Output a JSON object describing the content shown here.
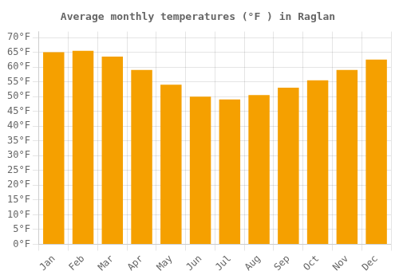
{
  "chart_data": {
    "type": "bar",
    "title": "Average monthly temperatures (°F ) in Raglan",
    "categories": [
      "Jan",
      "Feb",
      "Mar",
      "Apr",
      "May",
      "Jun",
      "Jul",
      "Aug",
      "Sep",
      "Oct",
      "Nov",
      "Dec"
    ],
    "values": [
      65,
      65.5,
      63.5,
      59,
      54,
      50,
      49,
      50.5,
      53,
      55.5,
      59,
      62.5
    ],
    "color": "#F5A000",
    "ylim": [
      0,
      72
    ],
    "yticks": [
      {
        "value": 0,
        "label": "0°F"
      },
      {
        "value": 5,
        "label": "5°F"
      },
      {
        "value": 10,
        "label": "10°F"
      },
      {
        "value": 15,
        "label": "15°F"
      },
      {
        "value": 20,
        "label": "20°F"
      },
      {
        "value": 25,
        "label": "25°F"
      },
      {
        "value": 30,
        "label": "30°F"
      },
      {
        "value": 35,
        "label": "35°F"
      },
      {
        "value": 40,
        "label": "40°F"
      },
      {
        "value": 45,
        "label": "45°F"
      },
      {
        "value": 50,
        "label": "50°F"
      },
      {
        "value": 55,
        "label": "55°F"
      },
      {
        "value": 60,
        "label": "60°F"
      },
      {
        "value": 65,
        "label": "65°F"
      },
      {
        "value": 70,
        "label": "70°F"
      }
    ],
    "grid": true
  }
}
